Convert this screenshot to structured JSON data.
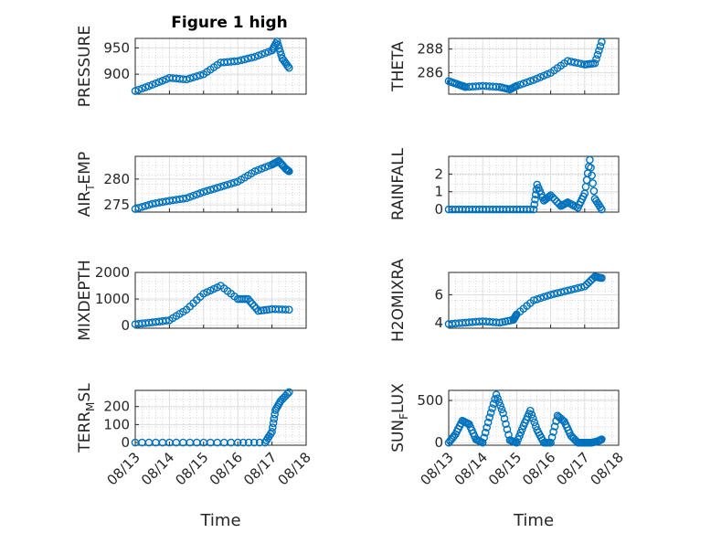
{
  "figure": {
    "title": "Figure 1 high",
    "x_label": "Time",
    "x_tick_labels": [
      "08/13",
      "08/14",
      "08/15",
      "08/16",
      "08/17",
      "08/18"
    ]
  },
  "colors": {
    "marker": "#0072BD",
    "axis": "#262626",
    "grid": "#c8c8c8"
  },
  "chart_data": [
    {
      "type": "scatter",
      "title": "Figure 1 high",
      "ylabel": "PRESSURE",
      "ylabel_sub": [],
      "xlabel": "",
      "xlim": [
        0,
        5
      ],
      "ylim": [
        862,
        968
      ],
      "yticks": [
        900,
        950
      ],
      "grid": true,
      "x_tick_labels_shown": false,
      "series": [
        {
          "x": [
            0.0,
            0.5,
            1.0,
            1.5,
            2.0,
            2.5,
            3.0,
            3.5,
            4.0,
            4.15,
            4.3,
            4.5
          ],
          "y": [
            868,
            880,
            893,
            890,
            900,
            922,
            925,
            933,
            945,
            962,
            930,
            912
          ]
        }
      ]
    },
    {
      "type": "scatter",
      "title": "",
      "ylabel": "THETA",
      "ylabel_sub": [],
      "xlabel": "",
      "xlim": [
        0,
        5
      ],
      "ylim": [
        284.2,
        288.9
      ],
      "yticks": [
        286,
        288
      ],
      "grid": true,
      "x_tick_labels_shown": false,
      "series": [
        {
          "x": [
            0.0,
            0.3,
            0.5,
            1.0,
            1.5,
            1.8,
            2.0,
            2.5,
            3.0,
            3.5,
            4.0,
            4.3,
            4.5
          ],
          "y": [
            285.3,
            285.0,
            284.8,
            284.9,
            284.8,
            284.6,
            284.9,
            285.4,
            286.0,
            287.0,
            286.7,
            286.8,
            288.6
          ]
        }
      ]
    },
    {
      "type": "scatter",
      "title": "",
      "ylabel": "AIR",
      "ylabel_sub": [
        "T",
        "EMP"
      ],
      "xlabel": "",
      "xlim": [
        0,
        5
      ],
      "ylim": [
        273.6,
        284.4
      ],
      "yticks": [
        275,
        280
      ],
      "grid": true,
      "x_tick_labels_shown": false,
      "series": [
        {
          "x": [
            0.0,
            0.5,
            1.0,
            1.5,
            2.0,
            2.5,
            3.0,
            3.5,
            4.0,
            4.2,
            4.4,
            4.5
          ],
          "y": [
            274.2,
            275.2,
            275.8,
            276.3,
            277.5,
            278.5,
            279.5,
            281.5,
            282.8,
            283.5,
            282.0,
            281.5
          ]
        }
      ]
    },
    {
      "type": "scatter",
      "title": "",
      "ylabel": "RAINFALL",
      "ylabel_sub": [],
      "xlabel": "",
      "xlim": [
        0,
        5
      ],
      "ylim": [
        -0.15,
        3.0
      ],
      "yticks": [
        0,
        1,
        2
      ],
      "grid": true,
      "x_tick_labels_shown": false,
      "series": [
        {
          "x": [
            0.0,
            0.5,
            1.0,
            1.5,
            2.0,
            2.5,
            2.6,
            2.8,
            3.0,
            3.3,
            3.5,
            3.8,
            4.0,
            4.15,
            4.3,
            4.5
          ],
          "y": [
            0,
            0,
            0,
            0,
            0,
            0,
            1.4,
            0.5,
            0.8,
            0.2,
            0.4,
            0.1,
            0.9,
            2.8,
            0.6,
            0
          ]
        }
      ]
    },
    {
      "type": "scatter",
      "title": "",
      "ylabel": "MIXDEPTH",
      "ylabel_sub": [],
      "xlabel": "",
      "xlim": [
        0,
        5
      ],
      "ylim": [
        -100,
        2000
      ],
      "yticks": [
        0,
        1000,
        2000
      ],
      "grid": true,
      "x_tick_labels_shown": false,
      "series": [
        {
          "x": [
            0.0,
            0.5,
            1.0,
            1.5,
            2.0,
            2.5,
            3.0,
            3.3,
            3.6,
            4.0,
            4.5
          ],
          "y": [
            50,
            120,
            200,
            600,
            1200,
            1500,
            1000,
            1000,
            550,
            620,
            600
          ]
        }
      ]
    },
    {
      "type": "scatter",
      "title": "",
      "ylabel": "H2OMIXRA",
      "ylabel_sub": [],
      "xlabel": "",
      "xlim": [
        0,
        5
      ],
      "ylim": [
        3.6,
        7.6
      ],
      "yticks": [
        4,
        6
      ],
      "grid": true,
      "x_tick_labels_shown": false,
      "series": [
        {
          "x": [
            0.0,
            0.5,
            1.0,
            1.5,
            1.9,
            2.0,
            2.5,
            3.0,
            3.5,
            4.0,
            4.3,
            4.5
          ],
          "y": [
            3.9,
            4.0,
            4.1,
            4.0,
            4.2,
            4.6,
            5.6,
            6.0,
            6.3,
            6.6,
            7.3,
            7.2
          ]
        }
      ]
    },
    {
      "type": "scatter",
      "title": "",
      "ylabel": "TERR",
      "ylabel_sub": [
        "M",
        "SL"
      ],
      "xlabel": "Time",
      "xlim": [
        0,
        5
      ],
      "ylim": [
        -15,
        290
      ],
      "yticks": [
        0,
        100,
        200
      ],
      "grid": true,
      "x_tick_labels_shown": true,
      "series": [
        {
          "x": [
            0.0,
            1.0,
            2.0,
            3.0,
            3.8,
            4.0,
            4.1,
            4.25,
            4.5
          ],
          "y": [
            0,
            0,
            0,
            0,
            0,
            60,
            180,
            230,
            280
          ]
        }
      ]
    },
    {
      "type": "scatter",
      "title": "",
      "ylabel": "SUN",
      "ylabel_sub": [
        "F",
        "LUX"
      ],
      "xlabel": "Time",
      "xlim": [
        0,
        5
      ],
      "ylim": [
        -30,
        620
      ],
      "yticks": [
        0,
        500
      ],
      "grid": true,
      "x_tick_labels_shown": true,
      "series": [
        {
          "x": [
            0.0,
            0.2,
            0.4,
            0.6,
            0.8,
            1.0,
            1.2,
            1.4,
            1.6,
            1.8,
            2.0,
            2.2,
            2.4,
            2.6,
            2.8,
            3.0,
            3.2,
            3.4,
            3.6,
            3.8,
            4.0,
            4.2,
            4.4,
            4.5
          ],
          "y": [
            0,
            100,
            260,
            220,
            40,
            0,
            300,
            570,
            350,
            30,
            0,
            200,
            380,
            150,
            0,
            0,
            320,
            250,
            80,
            0,
            0,
            0,
            20,
            40
          ]
        }
      ]
    }
  ]
}
